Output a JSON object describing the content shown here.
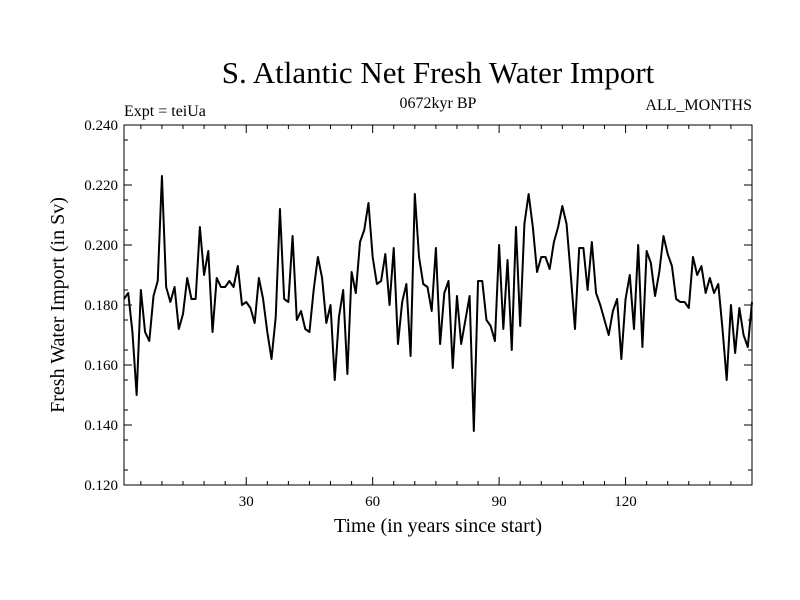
{
  "chart_data": {
    "type": "line",
    "title": "S. Atlantic Net Fresh Water Import",
    "subtitle_left": "Expt = teiUa",
    "subtitle_center": "0672kyr BP",
    "subtitle_right": "ALL_MONTHS",
    "xlabel": "Time (in years since start)",
    "ylabel": "Fresh Water Import (in Sv)",
    "xlim": [
      1,
      150
    ],
    "ylim": [
      0.12,
      0.24
    ],
    "x_ticks": [
      30,
      60,
      90,
      120
    ],
    "x_tick_labels": [
      "30",
      "60",
      "90",
      "120"
    ],
    "y_ticks": [
      0.12,
      0.14,
      0.16,
      0.18,
      0.2,
      0.22,
      0.24
    ],
    "y_tick_labels": [
      "0.120",
      "0.140",
      "0.160",
      "0.180",
      "0.200",
      "0.220",
      "0.240"
    ],
    "grid": false,
    "series": [
      {
        "name": "Fresh Water Import",
        "color": "#000000",
        "x": [
          1,
          2,
          3,
          4,
          5,
          6,
          7,
          8,
          9,
          10,
          11,
          12,
          13,
          14,
          15,
          16,
          17,
          18,
          19,
          20,
          21,
          22,
          23,
          24,
          25,
          26,
          27,
          28,
          29,
          30,
          31,
          32,
          33,
          34,
          35,
          36,
          37,
          38,
          39,
          40,
          41,
          42,
          43,
          44,
          45,
          46,
          47,
          48,
          49,
          50,
          51,
          52,
          53,
          54,
          55,
          56,
          57,
          58,
          59,
          60,
          61,
          62,
          63,
          64,
          65,
          66,
          67,
          68,
          69,
          70,
          71,
          72,
          73,
          74,
          75,
          76,
          77,
          78,
          79,
          80,
          81,
          82,
          83,
          84,
          85,
          86,
          87,
          88,
          89,
          90,
          91,
          92,
          93,
          94,
          95,
          96,
          97,
          98,
          99,
          100,
          101,
          102,
          103,
          104,
          105,
          106,
          107,
          108,
          109,
          110,
          111,
          112,
          113,
          114,
          115,
          116,
          117,
          118,
          119,
          120,
          121,
          122,
          123,
          124,
          125,
          126,
          127,
          128,
          129,
          130,
          131,
          132,
          133,
          134,
          135,
          136,
          137,
          138,
          139,
          140,
          141,
          142,
          143,
          144,
          145,
          146,
          147,
          148,
          149,
          150
        ],
        "values": [
          0.182,
          0.184,
          0.171,
          0.15,
          0.185,
          0.171,
          0.168,
          0.183,
          0.188,
          0.223,
          0.186,
          0.181,
          0.186,
          0.172,
          0.177,
          0.189,
          0.182,
          0.182,
          0.206,
          0.19,
          0.198,
          0.171,
          0.189,
          0.186,
          0.186,
          0.188,
          0.186,
          0.193,
          0.18,
          0.181,
          0.179,
          0.174,
          0.189,
          0.182,
          0.171,
          0.162,
          0.176,
          0.212,
          0.182,
          0.181,
          0.203,
          0.175,
          0.178,
          0.172,
          0.171,
          0.185,
          0.196,
          0.189,
          0.174,
          0.18,
          0.155,
          0.176,
          0.185,
          0.157,
          0.191,
          0.184,
          0.201,
          0.205,
          0.214,
          0.196,
          0.187,
          0.188,
          0.197,
          0.18,
          0.199,
          0.167,
          0.181,
          0.187,
          0.163,
          0.217,
          0.196,
          0.187,
          0.186,
          0.178,
          0.199,
          0.167,
          0.184,
          0.188,
          0.159,
          0.183,
          0.167,
          0.175,
          0.183,
          0.138,
          0.188,
          0.188,
          0.175,
          0.173,
          0.168,
          0.2,
          0.172,
          0.195,
          0.165,
          0.206,
          0.173,
          0.207,
          0.217,
          0.206,
          0.191,
          0.196,
          0.196,
          0.192,
          0.201,
          0.206,
          0.213,
          0.207,
          0.19,
          0.172,
          0.199,
          0.199,
          0.185,
          0.201,
          0.184,
          0.18,
          0.175,
          0.17,
          0.178,
          0.182,
          0.162,
          0.182,
          0.19,
          0.172,
          0.2,
          0.166,
          0.198,
          0.194,
          0.183,
          0.191,
          0.203,
          0.197,
          0.193,
          0.182,
          0.181,
          0.181,
          0.179,
          0.196,
          0.19,
          0.193,
          0.184,
          0.189,
          0.184,
          0.187,
          0.172,
          0.155,
          0.18,
          0.164,
          0.179,
          0.17,
          0.166,
          0.181
        ]
      }
    ]
  }
}
